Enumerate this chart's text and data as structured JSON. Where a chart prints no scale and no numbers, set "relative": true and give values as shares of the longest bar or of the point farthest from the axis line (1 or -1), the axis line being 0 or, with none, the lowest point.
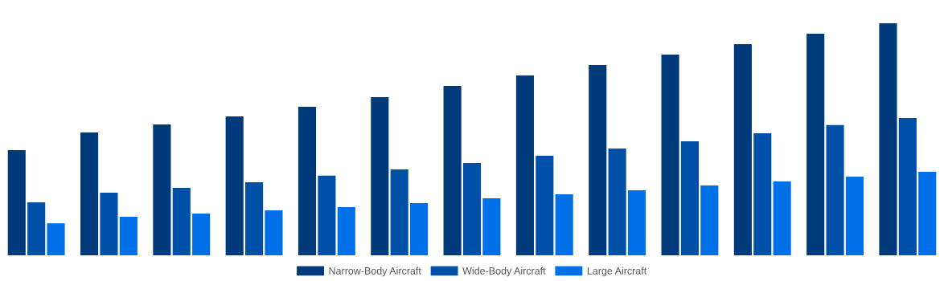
{
  "chart_data": {
    "type": "bar",
    "relative": true,
    "legend": "bottom",
    "grid": false,
    "categories": [
      null,
      null,
      null,
      null,
      null,
      null,
      null,
      null,
      null,
      null,
      null,
      null,
      null
    ],
    "series": [
      {
        "name": "Narrow-Body Aircraft",
        "color": "#003a7a",
        "values": [
          0.453,
          0.529,
          0.564,
          0.599,
          0.64,
          0.682,
          0.73,
          0.775,
          0.82,
          0.865,
          0.91,
          0.955,
          1
        ]
      },
      {
        "name": "Wide-Body Aircraft",
        "color": "#0050a8",
        "values": [
          0.228,
          0.27,
          0.291,
          0.315,
          0.343,
          0.37,
          0.398,
          0.429,
          0.46,
          0.491,
          0.526,
          0.561,
          0.592
        ]
      },
      {
        "name": "Large Aircraft",
        "color": "#0070e8",
        "values": [
          0.138,
          0.166,
          0.18,
          0.194,
          0.208,
          0.225,
          0.246,
          0.263,
          0.28,
          0.301,
          0.318,
          0.339,
          0.36
        ]
      }
    ]
  }
}
